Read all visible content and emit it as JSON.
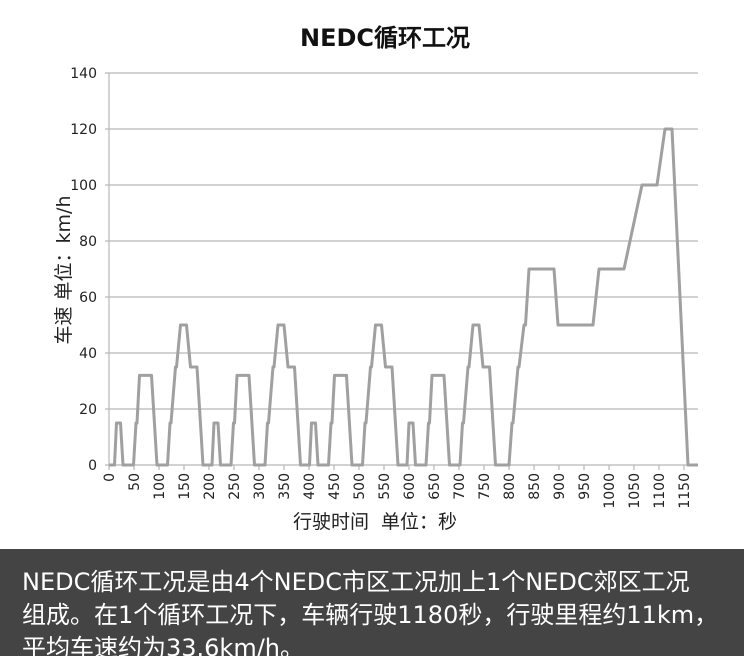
{
  "chart_data": {
    "type": "line",
    "title": "NEDC循环工况",
    "xlabel": "行驶时间  单位：秒",
    "ylabel": "车速  单位：km/h",
    "xlim": [
      0,
      1178
    ],
    "ylim": [
      0,
      140
    ],
    "yticks": [
      0,
      20,
      40,
      60,
      80,
      100,
      120,
      140
    ],
    "xticks": [
      0,
      50,
      100,
      150,
      200,
      250,
      300,
      350,
      400,
      450,
      500,
      550,
      600,
      650,
      700,
      750,
      800,
      850,
      900,
      950,
      1000,
      1050,
      1100,
      1150
    ],
    "grid": "horizontal",
    "series": [
      {
        "name": "车速",
        "color": "#a0a0a0",
        "x": [
          0,
          11,
          15,
          23,
          28,
          49,
          54,
          56,
          61,
          85,
          96,
          117,
          122,
          124,
          133,
          135,
          143,
          155,
          163,
          176,
          188,
          195,
          206,
          210,
          218,
          223,
          244,
          249,
          251,
          256,
          280,
          291,
          312,
          317,
          319,
          328,
          330,
          338,
          350,
          358,
          371,
          383,
          390,
          401,
          405,
          413,
          418,
          439,
          444,
          446,
          451,
          475,
          486,
          507,
          512,
          514,
          523,
          525,
          533,
          545,
          553,
          566,
          578,
          585,
          596,
          600,
          608,
          613,
          634,
          639,
          641,
          646,
          670,
          681,
          702,
          707,
          709,
          718,
          720,
          728,
          740,
          748,
          761,
          773,
          780,
          800,
          806,
          808,
          818,
          820,
          830,
          833,
          840,
          890,
          898,
          968,
          980,
          1030,
          1066,
          1096,
          1112,
          1126,
          1158,
          1178
        ],
        "y": [
          0,
          0,
          15,
          15,
          0,
          0,
          15,
          15,
          32,
          32,
          0,
          0,
          15,
          15,
          35,
          35,
          50,
          50,
          35,
          35,
          0,
          0,
          0,
          15,
          15,
          0,
          0,
          15,
          15,
          32,
          32,
          0,
          0,
          15,
          15,
          35,
          35,
          50,
          50,
          35,
          35,
          0,
          0,
          0,
          15,
          15,
          0,
          0,
          15,
          15,
          32,
          32,
          0,
          0,
          15,
          15,
          35,
          35,
          50,
          50,
          35,
          35,
          0,
          0,
          0,
          15,
          15,
          0,
          0,
          15,
          15,
          32,
          32,
          0,
          0,
          15,
          15,
          35,
          35,
          50,
          50,
          35,
          35,
          0,
          0,
          0,
          15,
          15,
          35,
          35,
          50,
          50,
          70,
          70,
          50,
          50,
          70,
          70,
          100,
          100,
          120,
          120,
          0,
          0
        ]
      }
    ]
  },
  "caption": {
    "lines": [
      "NEDC循环工况是由4个NEDC市区工况加上1个NEDC郊区工况",
      "组成。在1个循环工况下，车辆行驶1180秒，行驶里程约11km，",
      "平均车速约为33.6km/h。"
    ]
  },
  "colors": {
    "grid": "#b8b8b8",
    "line": "#a0a0a0",
    "caption_bg": "#444444"
  }
}
